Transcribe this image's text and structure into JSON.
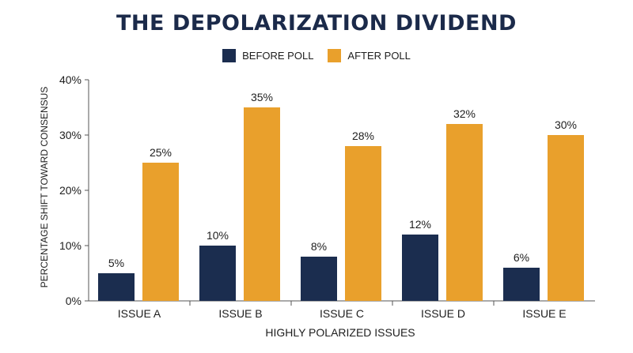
{
  "chart_data": {
    "type": "bar",
    "title": "THE DEPOLARIZATION DIVIDEND",
    "xlabel": "HIGHLY POLARIZED ISSUES",
    "ylabel": "PERCENTAGE SHIFT TOWARD CONSENSUS",
    "categories": [
      "ISSUE A",
      "ISSUE B",
      "ISSUE C",
      "ISSUE D",
      "ISSUE E"
    ],
    "series": [
      {
        "name": "BEFORE POLL",
        "color": "#1b2d4f",
        "values": [
          5,
          10,
          8,
          12,
          6
        ],
        "labels": [
          "5%",
          "10%",
          "8%",
          "12%",
          "6%"
        ]
      },
      {
        "name": "AFTER POLL",
        "color": "#e9a02c",
        "values": [
          25,
          35,
          28,
          32,
          30
        ],
        "labels": [
          "25%",
          "35%",
          "28%",
          "32%",
          "30%"
        ]
      }
    ],
    "ylim": [
      0,
      40
    ],
    "yticks": [
      0,
      10,
      20,
      30,
      40
    ],
    "ytick_labels": [
      "0%",
      "10%",
      "20%",
      "30%",
      "40%"
    ],
    "grid": false,
    "legend_position": "top-center"
  }
}
